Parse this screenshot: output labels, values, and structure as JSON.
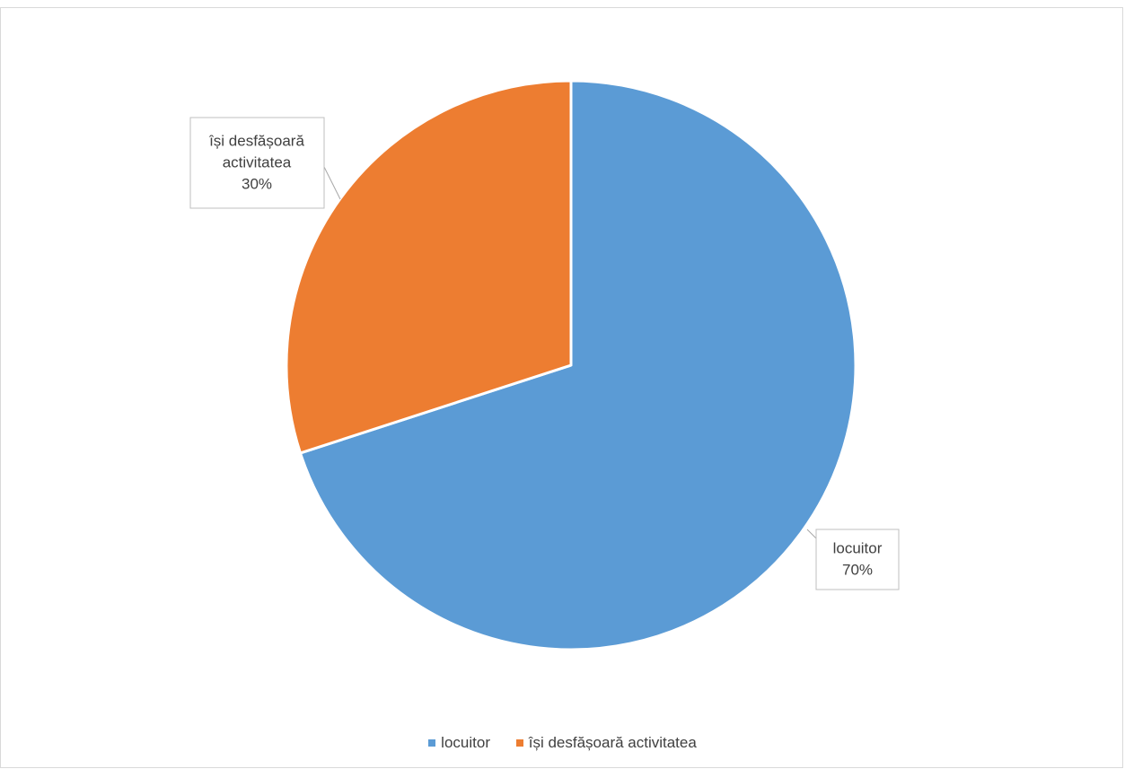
{
  "chart_data": {
    "type": "pie",
    "title": "",
    "start_angle": "top",
    "direction": "clockwise",
    "legend_position": "bottom",
    "slices": [
      {
        "label": "locuitor",
        "value": 70,
        "percent_label": "70%",
        "color": "#5B9BD5"
      },
      {
        "label": "își desfășoară activitatea",
        "value": 30,
        "percent_label": "30%",
        "color": "#ED7D31"
      }
    ]
  },
  "callouts": [
    {
      "lines": [
        "își desfășoară",
        "activitatea",
        "30%"
      ]
    },
    {
      "lines": [
        "locuitor",
        "70%"
      ]
    }
  ],
  "legend": [
    {
      "label": "locuitor",
      "color": "#5B9BD5"
    },
    {
      "label": "își desfășoară activitatea",
      "color": "#ED7D31"
    }
  ]
}
